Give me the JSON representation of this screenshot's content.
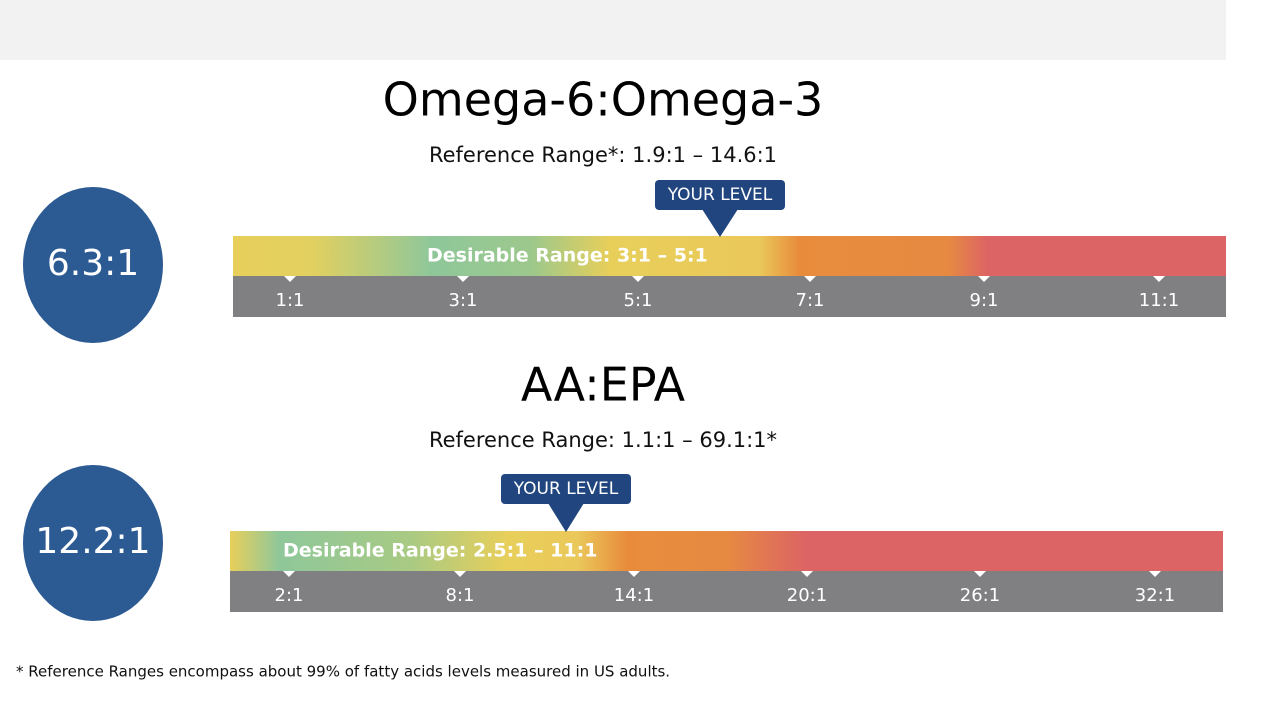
{
  "sections": [
    {
      "title": "Omega-6:Omega-3",
      "reference_range": "Reference Range*: 1.9:1 – 14.6:1",
      "level": "6.3:1",
      "marker_label": "YOUR LEVEL",
      "desirable_range": "Desirable Range: 3:1 – 5:1",
      "ticks": [
        "1:1",
        "3:1",
        "5:1",
        "7:1",
        "9:1",
        "11:1"
      ]
    },
    {
      "title": "AA:EPA",
      "reference_range": "Reference Range: 1.1:1 – 69.1:1*",
      "level": "12.2:1",
      "marker_label": "YOUR LEVEL",
      "desirable_range": "Desirable Range: 2.5:1 – 11:1",
      "ticks": [
        "2:1",
        "8:1",
        "14:1",
        "20:1",
        "26:1",
        "32:1"
      ]
    }
  ],
  "footnote": "* Reference Ranges encompass about 99% of fatty acids levels measured in US adults."
}
